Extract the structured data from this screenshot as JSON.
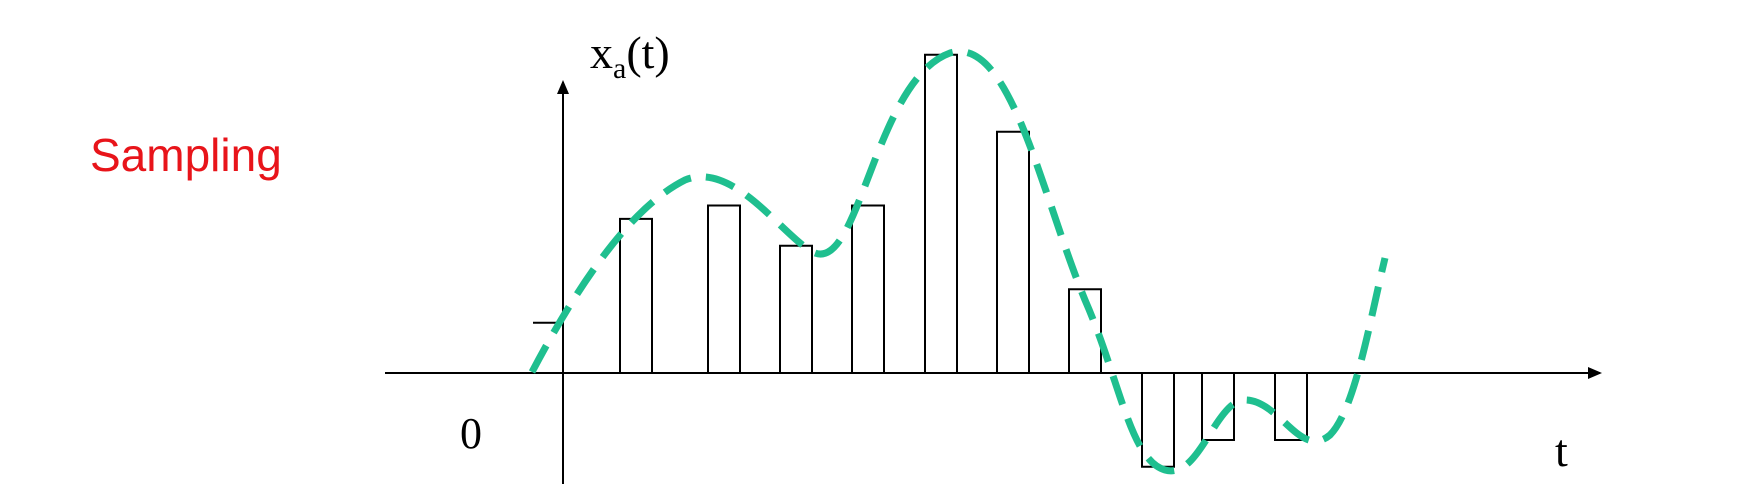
{
  "title": "Sampling",
  "labels": {
    "y_axis": "x",
    "y_axis_subscript": "a",
    "y_axis_arg": "(t)",
    "x_axis": "t",
    "origin": "0"
  },
  "colors": {
    "title": "#e8141a",
    "signal": "#1fbf8f",
    "axes": "#000000",
    "samples": "#000000"
  },
  "signal_style": "dashed",
  "sample_values": [
    1.5,
    4.6,
    5.0,
    3.8,
    5.0,
    9.5,
    7.2,
    2.5,
    -2.8,
    -2.0,
    -2.0
  ]
}
